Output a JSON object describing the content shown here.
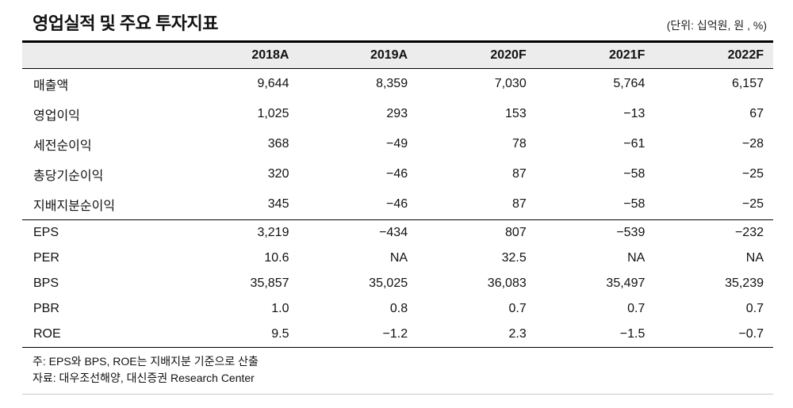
{
  "title": "영업실적 및 주요 투자지표",
  "unit_note": "(단위: 십억원, 원 , %)",
  "colors": {
    "header_bg": "#ececec"
  },
  "table": {
    "header": [
      "",
      "2018A",
      "2019A",
      "2020F",
      "2021F",
      "2022F"
    ],
    "groups": [
      {
        "rows": [
          {
            "label": "매출액",
            "values": [
              "9,644",
              "8,359",
              "7,030",
              "5,764",
              "6,157"
            ]
          },
          {
            "label": "영업이익",
            "values": [
              "1,025",
              "293",
              "153",
              "−13",
              "67"
            ]
          },
          {
            "label": "세전순이익",
            "values": [
              "368",
              "−49",
              "78",
              "−61",
              "−28"
            ]
          },
          {
            "label": "총당기순이익",
            "values": [
              "320",
              "−46",
              "87",
              "−58",
              "−25"
            ]
          },
          {
            "label": "지배지분순이익",
            "values": [
              "345",
              "−46",
              "87",
              "−58",
              "−25"
            ]
          }
        ]
      },
      {
        "rows": [
          {
            "label": "EPS",
            "values": [
              "3,219",
              "−434",
              "807",
              "−539",
              "−232"
            ]
          },
          {
            "label": "PER",
            "values": [
              "10.6",
              "NA",
              "32.5",
              "NA",
              "NA"
            ]
          },
          {
            "label": "BPS",
            "values": [
              "35,857",
              "35,025",
              "36,083",
              "35,497",
              "35,239"
            ]
          },
          {
            "label": "PBR",
            "values": [
              "1.0",
              "0.8",
              "0.7",
              "0.7",
              "0.7"
            ]
          },
          {
            "label": "ROE",
            "values": [
              "9.5",
              "−1.2",
              "2.3",
              "−1.5",
              "−0.7"
            ]
          }
        ]
      }
    ]
  },
  "footnotes": [
    "주: EPS와 BPS, ROE는 지배지분 기준으로 산출",
    "자료: 대우조선해양, 대신증권 Research Center"
  ]
}
